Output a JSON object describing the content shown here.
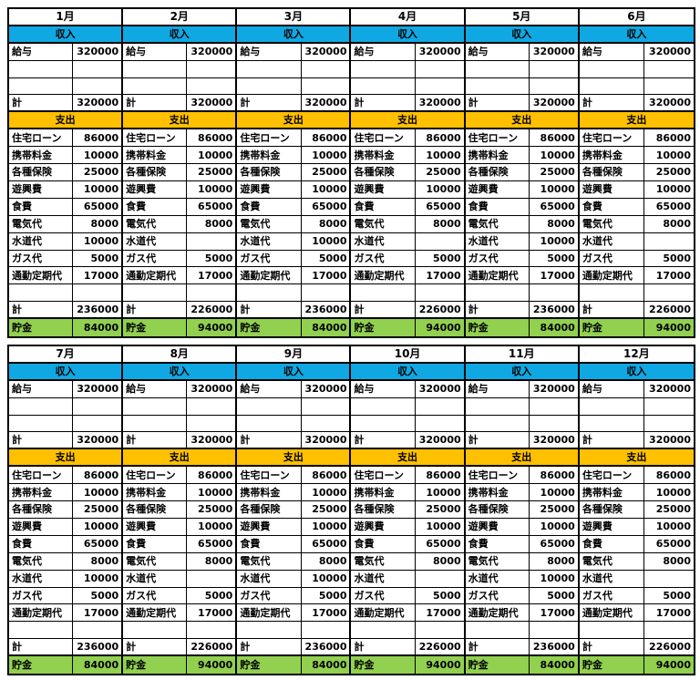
{
  "colors": {
    "income_header_bg": "#0fa8e2",
    "expense_header_bg": "#ffc000",
    "savings_row_bg": "#92d050",
    "grid_border": "#000000",
    "text": "#000000",
    "page_bg": "#ffffff"
  },
  "labels": {
    "income_section": "収入",
    "expense_section": "支出",
    "salary": "給与",
    "total": "計",
    "savings": "貯金"
  },
  "expense_items": [
    "住宅ローン",
    "携帯料金",
    "各種保険",
    "遊興費",
    "食費",
    "電気代",
    "水道代",
    "ガス代",
    "通勤定期代"
  ],
  "months": [
    {
      "label": "1月",
      "salary": "320000",
      "income_total": "320000",
      "expenses": [
        "86000",
        "10000",
        "25000",
        "10000",
        "65000",
        "8000",
        "10000",
        "5000",
        "17000"
      ],
      "expense_total": "236000",
      "savings": "84000"
    },
    {
      "label": "2月",
      "salary": "320000",
      "income_total": "320000",
      "expenses": [
        "86000",
        "10000",
        "25000",
        "10000",
        "65000",
        "8000",
        "",
        "5000",
        "17000"
      ],
      "expense_total": "226000",
      "savings": "94000"
    },
    {
      "label": "3月",
      "salary": "320000",
      "income_total": "320000",
      "expenses": [
        "86000",
        "10000",
        "25000",
        "10000",
        "65000",
        "8000",
        "10000",
        "5000",
        "17000"
      ],
      "expense_total": "236000",
      "savings": "84000"
    },
    {
      "label": "4月",
      "salary": "320000",
      "income_total": "320000",
      "expenses": [
        "86000",
        "10000",
        "25000",
        "10000",
        "65000",
        "8000",
        "",
        "5000",
        "17000"
      ],
      "expense_total": "226000",
      "savings": "94000"
    },
    {
      "label": "5月",
      "salary": "320000",
      "income_total": "320000",
      "expenses": [
        "86000",
        "10000",
        "25000",
        "10000",
        "65000",
        "8000",
        "10000",
        "5000",
        "17000"
      ],
      "expense_total": "236000",
      "savings": "84000"
    },
    {
      "label": "6月",
      "salary": "320000",
      "income_total": "320000",
      "expenses": [
        "86000",
        "10000",
        "25000",
        "10000",
        "65000",
        "8000",
        "",
        "5000",
        "17000"
      ],
      "expense_total": "226000",
      "savings": "94000"
    },
    {
      "label": "7月",
      "salary": "320000",
      "income_total": "320000",
      "expenses": [
        "86000",
        "10000",
        "25000",
        "10000",
        "65000",
        "8000",
        "10000",
        "5000",
        "17000"
      ],
      "expense_total": "236000",
      "savings": "84000"
    },
    {
      "label": "8月",
      "salary": "320000",
      "income_total": "320000",
      "expenses": [
        "86000",
        "10000",
        "25000",
        "10000",
        "65000",
        "8000",
        "",
        "5000",
        "17000"
      ],
      "expense_total": "226000",
      "savings": "94000"
    },
    {
      "label": "9月",
      "salary": "320000",
      "income_total": "320000",
      "expenses": [
        "86000",
        "10000",
        "25000",
        "10000",
        "65000",
        "8000",
        "10000",
        "5000",
        "17000"
      ],
      "expense_total": "236000",
      "savings": "84000"
    },
    {
      "label": "10月",
      "salary": "320000",
      "income_total": "320000",
      "expenses": [
        "86000",
        "10000",
        "25000",
        "10000",
        "65000",
        "8000",
        "",
        "5000",
        "17000"
      ],
      "expense_total": "226000",
      "savings": "94000"
    },
    {
      "label": "11月",
      "salary": "320000",
      "income_total": "320000",
      "expenses": [
        "86000",
        "10000",
        "25000",
        "10000",
        "65000",
        "8000",
        "10000",
        "5000",
        "17000"
      ],
      "expense_total": "236000",
      "savings": "84000"
    },
    {
      "label": "12月",
      "salary": "320000",
      "income_total": "320000",
      "expenses": [
        "86000",
        "10000",
        "25000",
        "10000",
        "65000",
        "8000",
        "",
        "5000",
        "17000"
      ],
      "expense_total": "226000",
      "savings": "94000"
    }
  ]
}
